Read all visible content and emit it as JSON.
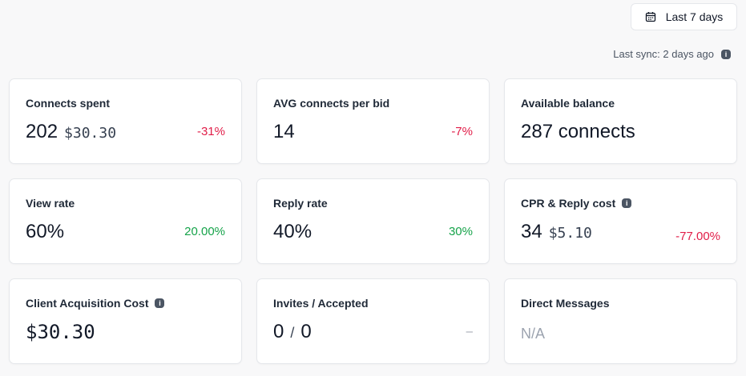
{
  "header": {
    "date_range": "Last 7 days",
    "sync": "Last sync: 2 days ago"
  },
  "cards": [
    {
      "title": "Connects spent",
      "value": "202",
      "sub": "$30.30",
      "delta": "-31%"
    },
    {
      "title": "AVG connects per bid",
      "value": "14",
      "delta": "-7%"
    },
    {
      "title": "Available balance",
      "value": "287 connects"
    },
    {
      "title": "View rate",
      "value": "60%",
      "delta": "20.00%"
    },
    {
      "title": "Reply rate",
      "value": "40%",
      "delta": "30%"
    },
    {
      "title": "CPR & Reply cost",
      "value": "34",
      "sub": "$5.10",
      "delta": "-77.00%"
    },
    {
      "title": "Client Acquisition Cost",
      "value": "$30.30"
    },
    {
      "title": "Invites / Accepted",
      "value": "0",
      "slash": "/",
      "value2": "0",
      "delta": "–"
    },
    {
      "title": "Direct Messages",
      "value": "N/A"
    }
  ],
  "colors": {
    "negative": "#e11d48",
    "positive": "#16a34a"
  }
}
